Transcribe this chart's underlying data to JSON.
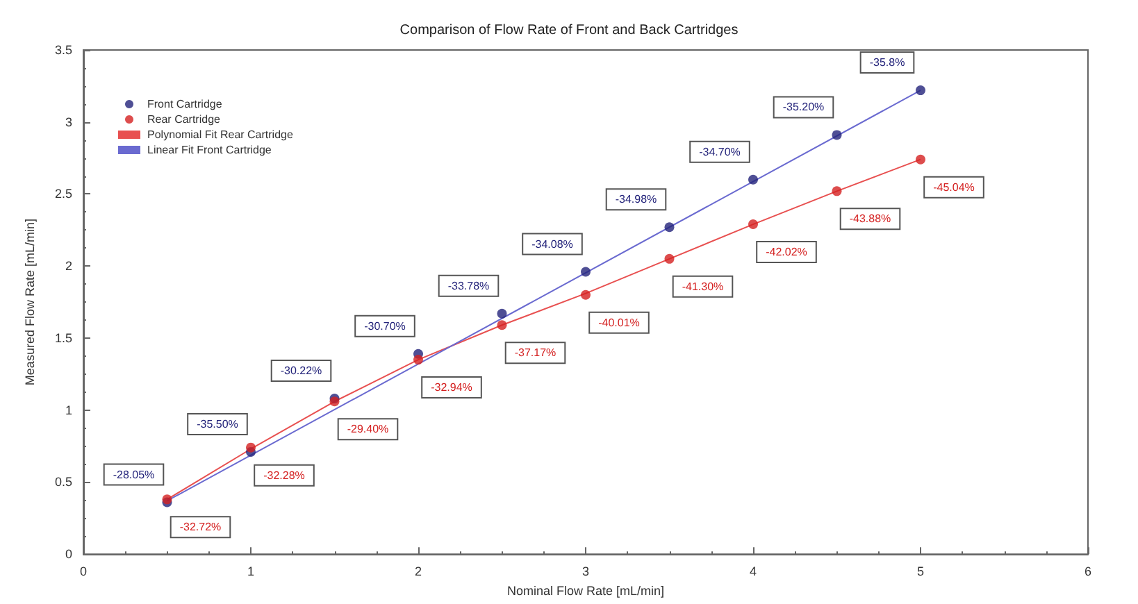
{
  "chart_data": {
    "type": "scatter",
    "title": "Comparison of Flow Rate of Front and Back Cartridges",
    "xlabel": "Nominal Flow Rate [mL/min]",
    "ylabel": "Measured Flow Rate [mL/min]",
    "xlim": [
      0,
      6
    ],
    "xticks": [
      0,
      1,
      2,
      3,
      4,
      5,
      6
    ],
    "ylim": [
      0,
      3.5
    ],
    "yticks": [
      0,
      0.5,
      1,
      1.5,
      2,
      2.5,
      3,
      3.5
    ],
    "grid": false,
    "legend": "top left",
    "marker": "circle",
    "series": [
      {
        "name": "Front Cartridge",
        "color": "#23237a",
        "x": [
          0.5,
          1,
          1.5,
          2,
          2.5,
          3,
          3.5,
          4,
          4.5,
          5
        ],
        "values": [
          0.36,
          0.71,
          1.08,
          1.39,
          1.67,
          1.96,
          2.27,
          2.6,
          2.91,
          3.22
        ]
      },
      {
        "name": "Rear Cartridge",
        "color": "#d42020",
        "x": [
          0.5,
          1,
          1.5,
          2,
          2.5,
          3,
          3.5,
          4,
          4.5,
          5
        ],
        "values": [
          0.38,
          0.74,
          1.06,
          1.35,
          1.59,
          1.8,
          2.05,
          2.29,
          2.52,
          2.74
        ]
      },
      {
        "name": "Polynomial Fit Rear Cartridge",
        "type": "line",
        "marker": "none",
        "color": "#e85050",
        "x": [
          0.5,
          1,
          1.5,
          2,
          2.5,
          3,
          3.5,
          4,
          4.5,
          5
        ],
        "values": [
          0.38,
          0.73,
          1.06,
          1.35,
          1.59,
          1.81,
          2.05,
          2.29,
          2.52,
          2.74
        ]
      },
      {
        "name": "Linear Fit Front Cartridge",
        "type": "line",
        "marker": "none",
        "color": "#6a6ad0",
        "x": [
          0.5,
          5
        ],
        "values": [
          0.37,
          3.22
        ]
      }
    ],
    "annotations": [
      {
        "text": "-28.05%",
        "x": 0.5,
        "y": 0.36
      },
      {
        "text": "-35.50%",
        "x": 1,
        "y": 0.71
      },
      {
        "text": "-30.22%",
        "x": 1.5,
        "y": 1.08
      },
      {
        "text": "-30.70%",
        "x": 2,
        "y": 1.39
      },
      {
        "text": "-33.78%",
        "x": 2.5,
        "y": 1.67
      },
      {
        "text": "-34.08%",
        "x": 3,
        "y": 1.96
      },
      {
        "text": "-34.98%",
        "x": 3.5,
        "y": 2.27
      },
      {
        "text": "-34.70%",
        "x": 4,
        "y": 2.6
      },
      {
        "text": "-35.20%",
        "x": 4.5,
        "y": 2.91
      },
      {
        "text": "-35.8%",
        "x": 5,
        "y": 3.22
      },
      {
        "text": "-32.72%",
        "x": 0.5,
        "y": 0.38
      },
      {
        "text": "-32.28%",
        "x": 1,
        "y": 0.74
      },
      {
        "text": "-29.40%",
        "x": 1.5,
        "y": 1.06
      },
      {
        "text": "-32.94%",
        "x": 2,
        "y": 1.35
      },
      {
        "text": "-37.17%",
        "x": 2.5,
        "y": 1.59
      },
      {
        "text": "-40.01%",
        "x": 3,
        "y": 1.8
      },
      {
        "text": "-41.30%",
        "x": 3.5,
        "y": 2.05
      },
      {
        "text": "-42.02%",
        "x": 4,
        "y": 2.29
      },
      {
        "text": "-43.88%",
        "x": 4.5,
        "y": 2.52
      },
      {
        "text": "-45.04%",
        "x": 5,
        "y": 2.74
      }
    ]
  }
}
